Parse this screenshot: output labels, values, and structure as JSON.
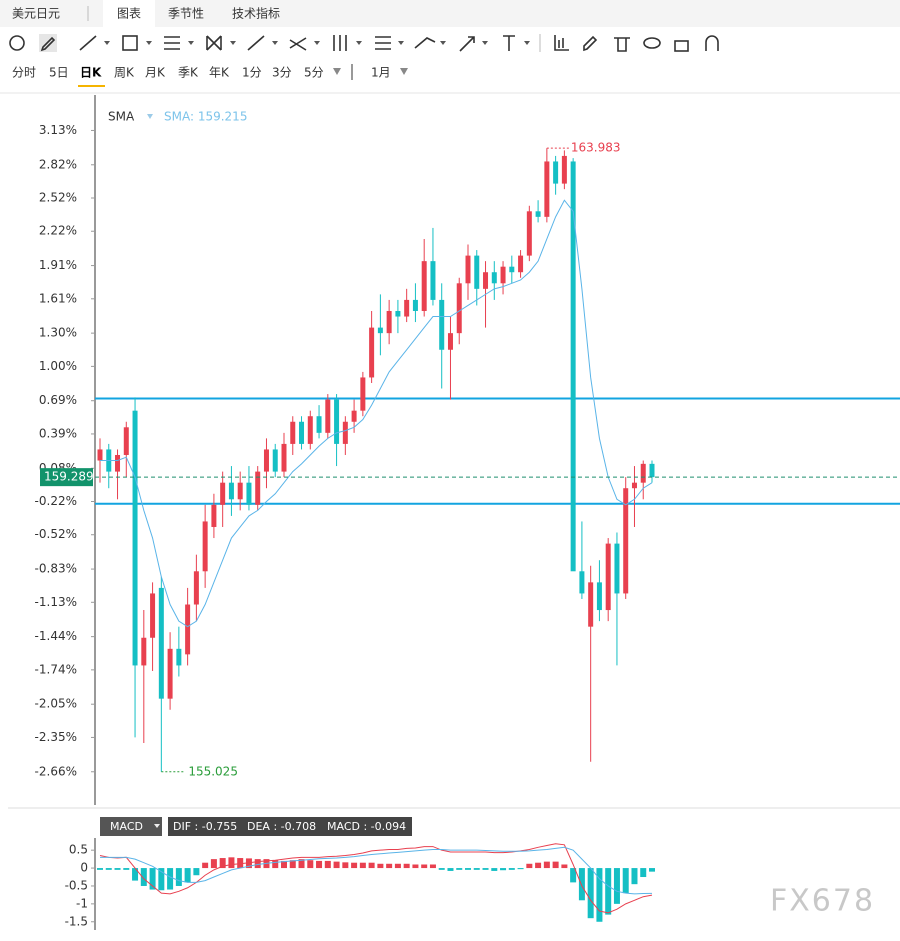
{
  "tabs": [
    "美元日元",
    "图表",
    "季节性",
    "技术指标"
  ],
  "periods": [
    "分时",
    "5日",
    "日K",
    "周K",
    "月K",
    "季K",
    "年K",
    "1分",
    "3分",
    "5分",
    "1月"
  ],
  "chart_data": {
    "type": "candlestick",
    "legend": [
      "SMA",
      "SMA: 159.215"
    ],
    "ylim": [
      -2.96,
      3.45
    ],
    "yticks": [
      {
        "value": 3.13,
        "label": "3.13%"
      },
      {
        "value": 2.82,
        "label": "2.82%"
      },
      {
        "value": 2.52,
        "label": "2.52%"
      },
      {
        "value": 2.22,
        "label": "2.22%"
      },
      {
        "value": 1.91,
        "label": "1.91%"
      },
      {
        "value": 1.61,
        "label": "1.61%"
      },
      {
        "value": 1.3,
        "label": "1.30%"
      },
      {
        "value": 1.0,
        "label": "1.00%"
      },
      {
        "value": 0.69,
        "label": "0.69%"
      },
      {
        "value": 0.39,
        "label": "0.39%"
      },
      {
        "value": 0.08,
        "label": "0.08%"
      },
      {
        "value": -0.22,
        "label": "-0.22%"
      },
      {
        "value": -0.52,
        "label": "-0.52%"
      },
      {
        "value": -0.83,
        "label": "-0.83%"
      },
      {
        "value": -1.13,
        "label": "-1.13%"
      },
      {
        "value": -1.44,
        "label": "-1.44%"
      },
      {
        "value": -1.74,
        "label": "-1.74%"
      },
      {
        "value": -2.05,
        "label": "-2.05%"
      },
      {
        "value": -2.35,
        "label": "-2.35%"
      },
      {
        "value": -2.66,
        "label": "-2.66%"
      }
    ],
    "up_color": "#e8404f",
    "down_color": "#14bfc4",
    "sma_color": "#5ab4e8",
    "hline_color": "#12a4e0",
    "hlines": [
      0.71,
      -0.24
    ],
    "last_price": "159.289",
    "high_label": "163.983",
    "low_label": "155.025",
    "candles": [
      [
        0.15,
        0.35,
        -0.05,
        0.25
      ],
      [
        0.25,
        0.3,
        -0.1,
        0.05
      ],
      [
        0.05,
        0.25,
        -0.2,
        0.2
      ],
      [
        0.2,
        0.5,
        0.0,
        0.45
      ],
      [
        0.6,
        0.72,
        -2.35,
        -1.7
      ],
      [
        -1.7,
        -1.2,
        -2.4,
        -1.45
      ],
      [
        -1.45,
        -0.95,
        -1.75,
        -1.05
      ],
      [
        -1.0,
        -0.9,
        -2.66,
        -2.0
      ],
      [
        -2.0,
        -1.4,
        -2.1,
        -1.55
      ],
      [
        -1.55,
        -1.35,
        -1.8,
        -1.7
      ],
      [
        -1.6,
        -1.0,
        -1.7,
        -1.15
      ],
      [
        -1.15,
        -0.7,
        -1.3,
        -0.85
      ],
      [
        -0.85,
        -0.25,
        -1.0,
        -0.4
      ],
      [
        -0.45,
        -0.15,
        -0.55,
        -0.25
      ],
      [
        -0.25,
        0.05,
        -0.45,
        -0.05
      ],
      [
        -0.05,
        0.1,
        -0.35,
        -0.2
      ],
      [
        -0.2,
        0.05,
        -0.3,
        -0.05
      ],
      [
        -0.05,
        0.1,
        -0.3,
        -0.25
      ],
      [
        -0.25,
        0.1,
        -0.3,
        0.05
      ],
      [
        0.05,
        0.35,
        -0.1,
        0.25
      ],
      [
        0.25,
        0.3,
        0.0,
        0.05
      ],
      [
        0.05,
        0.4,
        0.0,
        0.3
      ],
      [
        0.3,
        0.55,
        0.2,
        0.5
      ],
      [
        0.5,
        0.55,
        0.25,
        0.3
      ],
      [
        0.3,
        0.6,
        0.25,
        0.55
      ],
      [
        0.55,
        0.65,
        0.35,
        0.4
      ],
      [
        0.4,
        0.75,
        0.35,
        0.7
      ],
      [
        0.7,
        0.75,
        0.1,
        0.3
      ],
      [
        0.3,
        0.55,
        0.2,
        0.5
      ],
      [
        0.5,
        0.7,
        0.4,
        0.6
      ],
      [
        0.6,
        0.95,
        0.55,
        0.9
      ],
      [
        0.9,
        1.5,
        0.85,
        1.35
      ],
      [
        1.35,
        1.65,
        1.1,
        1.3
      ],
      [
        1.3,
        1.6,
        1.2,
        1.5
      ],
      [
        1.5,
        1.6,
        1.3,
        1.45
      ],
      [
        1.45,
        1.7,
        1.4,
        1.6
      ],
      [
        1.6,
        1.75,
        1.4,
        1.5
      ],
      [
        1.5,
        2.15,
        1.45,
        1.95
      ],
      [
        1.95,
        2.25,
        1.55,
        1.6
      ],
      [
        1.6,
        1.75,
        0.8,
        1.15
      ],
      [
        1.15,
        1.45,
        0.7,
        1.3
      ],
      [
        1.3,
        1.8,
        1.2,
        1.75
      ],
      [
        1.75,
        2.1,
        1.6,
        2.0
      ],
      [
        2.0,
        2.05,
        1.55,
        1.7
      ],
      [
        1.7,
        1.95,
        1.35,
        1.85
      ],
      [
        1.85,
        1.95,
        1.6,
        1.75
      ],
      [
        1.75,
        1.95,
        1.65,
        1.9
      ],
      [
        1.9,
        2.0,
        1.75,
        1.85
      ],
      [
        1.85,
        2.05,
        1.8,
        2.0
      ],
      [
        2.0,
        2.45,
        1.95,
        2.4
      ],
      [
        2.4,
        2.5,
        2.3,
        2.35
      ],
      [
        2.35,
        2.97,
        2.3,
        2.85
      ],
      [
        2.85,
        2.9,
        2.55,
        2.65
      ],
      [
        2.65,
        2.95,
        2.6,
        2.9
      ],
      [
        2.85,
        2.88,
        -0.8,
        -0.85
      ],
      [
        -0.85,
        -0.4,
        -1.1,
        -1.05
      ],
      [
        -1.35,
        -0.8,
        -2.57,
        -0.95
      ],
      [
        -0.95,
        -0.75,
        -1.3,
        -1.2
      ],
      [
        -1.2,
        -0.55,
        -1.3,
        -0.6
      ],
      [
        -0.6,
        -0.5,
        -1.7,
        -1.05
      ],
      [
        -1.05,
        0.0,
        -1.1,
        -0.1
      ],
      [
        -0.1,
        0.1,
        -0.45,
        -0.05
      ],
      [
        -0.05,
        0.15,
        -0.2,
        0.12
      ],
      [
        0.12,
        0.15,
        -0.05,
        0.0
      ]
    ],
    "sma": [
      0.15,
      0.15,
      0.15,
      0.18,
      0.0,
      -0.3,
      -0.55,
      -0.9,
      -1.15,
      -1.3,
      -1.35,
      -1.3,
      -1.15,
      -0.95,
      -0.75,
      -0.55,
      -0.45,
      -0.35,
      -0.3,
      -0.22,
      -0.15,
      -0.05,
      0.05,
      0.12,
      0.2,
      0.28,
      0.35,
      0.4,
      0.42,
      0.45,
      0.52,
      0.65,
      0.8,
      0.95,
      1.05,
      1.15,
      1.25,
      1.35,
      1.45,
      1.45,
      1.45,
      1.5,
      1.55,
      1.6,
      1.65,
      1.7,
      1.72,
      1.75,
      1.78,
      1.85,
      1.95,
      2.15,
      2.35,
      2.5,
      2.4,
      1.7,
      0.9,
      0.35,
      0.0,
      -0.2,
      -0.25,
      -0.2,
      -0.1,
      -0.05
    ]
  },
  "macd": {
    "name": "MACD",
    "info": [
      "DIF : -0.755",
      "DEA : -0.708",
      "MACD : -0.094"
    ],
    "ylim": [
      -1.73,
      0.84
    ],
    "yticks": [
      0.5,
      0,
      -0.5,
      -1,
      -1.5
    ],
    "hist": [
      -0.05,
      -0.05,
      -0.05,
      -0.05,
      -0.35,
      -0.5,
      -0.6,
      -0.62,
      -0.6,
      -0.5,
      -0.4,
      -0.2,
      0.15,
      0.25,
      0.28,
      0.3,
      0.28,
      0.27,
      0.25,
      0.25,
      0.22,
      0.2,
      0.22,
      0.25,
      0.22,
      0.2,
      0.2,
      0.18,
      0.16,
      0.15,
      0.15,
      0.15,
      0.12,
      0.12,
      0.12,
      0.12,
      0.1,
      0.1,
      0.1,
      -0.05,
      -0.08,
      -0.05,
      -0.05,
      -0.05,
      -0.05,
      -0.08,
      -0.06,
      -0.05,
      -0.03,
      0.12,
      0.15,
      0.18,
      0.18,
      0.1,
      -0.4,
      -0.9,
      -1.4,
      -1.5,
      -1.3,
      -1.0,
      -0.7,
      -0.45,
      -0.25,
      -0.1
    ],
    "dif": [
      0.35,
      0.3,
      0.28,
      0.3,
      0.0,
      -0.3,
      -0.5,
      -0.7,
      -0.72,
      -0.65,
      -0.55,
      -0.4,
      -0.2,
      -0.05,
      0.05,
      0.1,
      0.12,
      0.15,
      0.18,
      0.2,
      0.22,
      0.25,
      0.28,
      0.3,
      0.3,
      0.3,
      0.32,
      0.33,
      0.35,
      0.38,
      0.42,
      0.48,
      0.5,
      0.52,
      0.52,
      0.55,
      0.56,
      0.6,
      0.6,
      0.5,
      0.45,
      0.45,
      0.45,
      0.45,
      0.45,
      0.43,
      0.43,
      0.45,
      0.48,
      0.52,
      0.58,
      0.63,
      0.68,
      0.65,
      0.1,
      -0.5,
      -0.9,
      -1.2,
      -1.25,
      -1.15,
      -1.0,
      -0.9,
      -0.8,
      -0.755
    ],
    "dea": [
      0.3,
      0.3,
      0.3,
      0.3,
      0.25,
      0.15,
      0.05,
      -0.1,
      -0.25,
      -0.35,
      -0.4,
      -0.4,
      -0.35,
      -0.25,
      -0.15,
      -0.05,
      0.0,
      0.05,
      0.1,
      0.13,
      0.16,
      0.18,
      0.2,
      0.22,
      0.24,
      0.26,
      0.27,
      0.28,
      0.3,
      0.32,
      0.35,
      0.38,
      0.4,
      0.42,
      0.44,
      0.46,
      0.48,
      0.5,
      0.52,
      0.52,
      0.5,
      0.5,
      0.5,
      0.5,
      0.49,
      0.48,
      0.47,
      0.47,
      0.47,
      0.48,
      0.5,
      0.52,
      0.55,
      0.58,
      0.5,
      0.25,
      0.0,
      -0.3,
      -0.5,
      -0.65,
      -0.7,
      -0.72,
      -0.71,
      -0.708
    ],
    "dif_color": "#e8404f",
    "dea_color": "#5ab4e8"
  },
  "watermark": "FX678"
}
